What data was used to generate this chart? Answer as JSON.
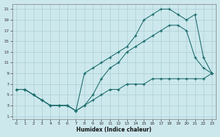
{
  "xlabel": "Humidex (Indice chaleur)",
  "bg_color": "#cce8ed",
  "grid_color": "#aacdd4",
  "line_color": "#1a6b6b",
  "xlim": [
    -0.5,
    23.5
  ],
  "ylim": [
    0.5,
    22
  ],
  "xticks": [
    0,
    1,
    2,
    3,
    4,
    5,
    6,
    7,
    8,
    9,
    10,
    11,
    12,
    13,
    14,
    15,
    16,
    17,
    18,
    19,
    20,
    21,
    22,
    23
  ],
  "yticks": [
    1,
    3,
    5,
    7,
    9,
    11,
    13,
    15,
    17,
    19,
    21
  ],
  "line1_x": [
    1,
    2,
    3,
    4,
    5,
    6,
    7,
    8,
    9,
    10,
    11,
    12,
    13,
    14,
    15,
    16,
    17,
    18,
    19,
    20,
    21,
    22,
    23
  ],
  "line1_y": [
    6,
    5,
    4,
    3,
    3,
    3,
    2,
    3,
    5,
    8,
    10,
    11,
    13,
    14,
    15,
    16,
    17,
    18,
    18,
    17,
    12,
    10,
    9
  ],
  "line2_x": [
    0,
    1,
    2,
    3,
    4,
    5,
    6,
    7,
    8,
    9,
    10,
    11,
    12,
    13,
    14,
    15,
    16,
    17,
    18,
    19,
    20,
    21,
    22,
    23
  ],
  "line2_y": [
    6,
    6,
    5,
    4,
    3,
    3,
    3,
    2,
    9,
    10,
    11,
    12,
    13,
    14,
    16,
    19,
    20,
    21,
    21,
    20,
    19,
    20,
    12,
    9
  ],
  "line3_x": [
    0,
    1,
    2,
    3,
    4,
    5,
    6,
    7,
    8,
    9,
    10,
    11,
    12,
    13,
    14,
    15,
    16,
    17,
    18,
    19,
    20,
    21,
    22,
    23
  ],
  "line3_y": [
    6,
    6,
    5,
    4,
    3,
    3,
    3,
    2,
    3,
    4,
    5,
    6,
    6,
    7,
    7,
    7,
    8,
    8,
    8,
    8,
    8,
    8,
    8,
    9
  ]
}
